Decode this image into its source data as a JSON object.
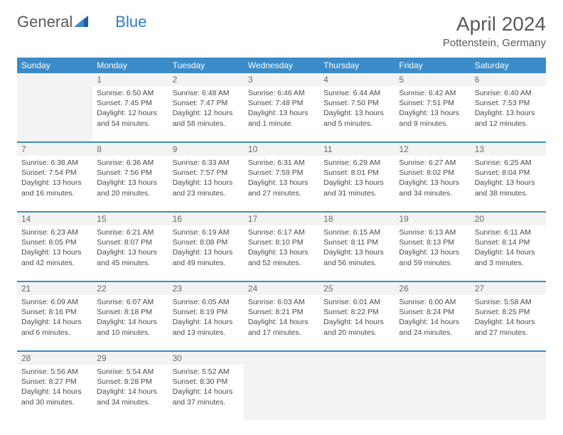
{
  "logo": {
    "text1": "General",
    "text2": "Blue"
  },
  "title": "April 2024",
  "location": "Pottenstein, Germany",
  "colors": {
    "header_bg": "#3b8bc8",
    "header_fg": "#ffffff",
    "daynum_bg": "#f3f3f3",
    "text": "#4a4a4a",
    "title": "#5a5a5a"
  },
  "day_names": [
    "Sunday",
    "Monday",
    "Tuesday",
    "Wednesday",
    "Thursday",
    "Friday",
    "Saturday"
  ],
  "weeks": [
    {
      "numbers": [
        "",
        "1",
        "2",
        "3",
        "4",
        "5",
        "6"
      ],
      "cells": [
        null,
        {
          "sunrise": "Sunrise: 6:50 AM",
          "sunset": "Sunset: 7:45 PM",
          "daylight": "Daylight: 12 hours and 54 minutes."
        },
        {
          "sunrise": "Sunrise: 6:48 AM",
          "sunset": "Sunset: 7:47 PM",
          "daylight": "Daylight: 12 hours and 58 minutes."
        },
        {
          "sunrise": "Sunrise: 6:46 AM",
          "sunset": "Sunset: 7:48 PM",
          "daylight": "Daylight: 13 hours and 1 minute."
        },
        {
          "sunrise": "Sunrise: 6:44 AM",
          "sunset": "Sunset: 7:50 PM",
          "daylight": "Daylight: 13 hours and 5 minutes."
        },
        {
          "sunrise": "Sunrise: 6:42 AM",
          "sunset": "Sunset: 7:51 PM",
          "daylight": "Daylight: 13 hours and 9 minutes."
        },
        {
          "sunrise": "Sunrise: 6:40 AM",
          "sunset": "Sunset: 7:53 PM",
          "daylight": "Daylight: 13 hours and 12 minutes."
        }
      ]
    },
    {
      "numbers": [
        "7",
        "8",
        "9",
        "10",
        "11",
        "12",
        "13"
      ],
      "cells": [
        {
          "sunrise": "Sunrise: 6:38 AM",
          "sunset": "Sunset: 7:54 PM",
          "daylight": "Daylight: 13 hours and 16 minutes."
        },
        {
          "sunrise": "Sunrise: 6:36 AM",
          "sunset": "Sunset: 7:56 PM",
          "daylight": "Daylight: 13 hours and 20 minutes."
        },
        {
          "sunrise": "Sunrise: 6:33 AM",
          "sunset": "Sunset: 7:57 PM",
          "daylight": "Daylight: 13 hours and 23 minutes."
        },
        {
          "sunrise": "Sunrise: 6:31 AM",
          "sunset": "Sunset: 7:59 PM",
          "daylight": "Daylight: 13 hours and 27 minutes."
        },
        {
          "sunrise": "Sunrise: 6:29 AM",
          "sunset": "Sunset: 8:01 PM",
          "daylight": "Daylight: 13 hours and 31 minutes."
        },
        {
          "sunrise": "Sunrise: 6:27 AM",
          "sunset": "Sunset: 8:02 PM",
          "daylight": "Daylight: 13 hours and 34 minutes."
        },
        {
          "sunrise": "Sunrise: 6:25 AM",
          "sunset": "Sunset: 8:04 PM",
          "daylight": "Daylight: 13 hours and 38 minutes."
        }
      ]
    },
    {
      "numbers": [
        "14",
        "15",
        "16",
        "17",
        "18",
        "19",
        "20"
      ],
      "cells": [
        {
          "sunrise": "Sunrise: 6:23 AM",
          "sunset": "Sunset: 8:05 PM",
          "daylight": "Daylight: 13 hours and 42 minutes."
        },
        {
          "sunrise": "Sunrise: 6:21 AM",
          "sunset": "Sunset: 8:07 PM",
          "daylight": "Daylight: 13 hours and 45 minutes."
        },
        {
          "sunrise": "Sunrise: 6:19 AM",
          "sunset": "Sunset: 8:08 PM",
          "daylight": "Daylight: 13 hours and 49 minutes."
        },
        {
          "sunrise": "Sunrise: 6:17 AM",
          "sunset": "Sunset: 8:10 PM",
          "daylight": "Daylight: 13 hours and 52 minutes."
        },
        {
          "sunrise": "Sunrise: 6:15 AM",
          "sunset": "Sunset: 8:11 PM",
          "daylight": "Daylight: 13 hours and 56 minutes."
        },
        {
          "sunrise": "Sunrise: 6:13 AM",
          "sunset": "Sunset: 8:13 PM",
          "daylight": "Daylight: 13 hours and 59 minutes."
        },
        {
          "sunrise": "Sunrise: 6:11 AM",
          "sunset": "Sunset: 8:14 PM",
          "daylight": "Daylight: 14 hours and 3 minutes."
        }
      ]
    },
    {
      "numbers": [
        "21",
        "22",
        "23",
        "24",
        "25",
        "26",
        "27"
      ],
      "cells": [
        {
          "sunrise": "Sunrise: 6:09 AM",
          "sunset": "Sunset: 8:16 PM",
          "daylight": "Daylight: 14 hours and 6 minutes."
        },
        {
          "sunrise": "Sunrise: 6:07 AM",
          "sunset": "Sunset: 8:18 PM",
          "daylight": "Daylight: 14 hours and 10 minutes."
        },
        {
          "sunrise": "Sunrise: 6:05 AM",
          "sunset": "Sunset: 8:19 PM",
          "daylight": "Daylight: 14 hours and 13 minutes."
        },
        {
          "sunrise": "Sunrise: 6:03 AM",
          "sunset": "Sunset: 8:21 PM",
          "daylight": "Daylight: 14 hours and 17 minutes."
        },
        {
          "sunrise": "Sunrise: 6:01 AM",
          "sunset": "Sunset: 8:22 PM",
          "daylight": "Daylight: 14 hours and 20 minutes."
        },
        {
          "sunrise": "Sunrise: 6:00 AM",
          "sunset": "Sunset: 8:24 PM",
          "daylight": "Daylight: 14 hours and 24 minutes."
        },
        {
          "sunrise": "Sunrise: 5:58 AM",
          "sunset": "Sunset: 8:25 PM",
          "daylight": "Daylight: 14 hours and 27 minutes."
        }
      ]
    },
    {
      "numbers": [
        "28",
        "29",
        "30",
        "",
        "",
        "",
        ""
      ],
      "cells": [
        {
          "sunrise": "Sunrise: 5:56 AM",
          "sunset": "Sunset: 8:27 PM",
          "daylight": "Daylight: 14 hours and 30 minutes."
        },
        {
          "sunrise": "Sunrise: 5:54 AM",
          "sunset": "Sunset: 8:28 PM",
          "daylight": "Daylight: 14 hours and 34 minutes."
        },
        {
          "sunrise": "Sunrise: 5:52 AM",
          "sunset": "Sunset: 8:30 PM",
          "daylight": "Daylight: 14 hours and 37 minutes."
        },
        null,
        null,
        null,
        null
      ]
    }
  ]
}
